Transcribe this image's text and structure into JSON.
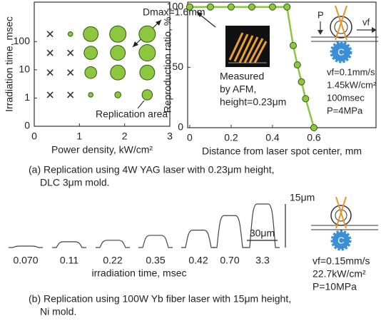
{
  "chart_data": [
    {
      "type": "scatter",
      "xlabel": "Power density, kW/cm²",
      "ylabel": "Irradiation time, msec",
      "xlim": [
        0,
        3
      ],
      "ylim": [
        0,
        2500
      ],
      "xticks": [
        0,
        1,
        2,
        3
      ],
      "yticks": [
        0,
        1,
        10,
        100
      ],
      "y_scale": "log",
      "series": [
        {
          "marker": "x",
          "color": "#333333",
          "x": [
            0.35,
            0.35,
            0.8,
            0.35,
            0.8,
            0.35,
            0.8
          ],
          "values": [
            185,
            40,
            40,
            8,
            8,
            1.3,
            1.3
          ]
        },
        {
          "marker": "circle",
          "color": "#8dc63f",
          "edgecolor": "#2d5a10",
          "x": [
            0.8,
            1.25,
            1.85,
            2.5,
            1.25,
            1.85,
            2.5,
            1.25,
            1.85,
            2.5,
            1.25,
            1.85,
            2.5
          ],
          "values": [
            185,
            185,
            185,
            185,
            40,
            40,
            40,
            8,
            8,
            8,
            1.3,
            1.3,
            1.3
          ],
          "sizes": [
            0.45,
            1.45,
            1.6,
            1.6,
            1.3,
            1.45,
            1.6,
            1.15,
            1.45,
            1.45,
            0.45,
            0.6,
            1.0
          ]
        }
      ],
      "annotations": [
        "Dmax=1.6mm",
        "Replication area"
      ]
    },
    {
      "type": "line",
      "xlabel": "Distance from laser spot center, mm",
      "ylabel": "Reproduction ratio, %",
      "xlim": [
        -0.01,
        0.9
      ],
      "ylim": [
        0,
        104
      ],
      "xticks": [
        0,
        0.2,
        0.4,
        0.6
      ],
      "yticks": [
        0,
        50,
        100
      ],
      "x": [
        0,
        0.1,
        0.2,
        0.3,
        0.4,
        0.47,
        0.5,
        0.52,
        0.54,
        0.56,
        0.6
      ],
      "values": [
        100,
        100,
        100,
        100,
        100,
        100,
        68,
        52,
        38,
        24,
        0
      ],
      "color": "#8dc63f",
      "edgecolor": "#2d5a10",
      "annotations": [
        "Measured",
        "by AFM,",
        "height=0.23μm"
      ],
      "diagram_labels": [
        "P",
        "vf",
        "C"
      ],
      "conditions": [
        "vf=0.1mm/s",
        "1.45kW/cm²",
        "100msec",
        "P=4MPa"
      ]
    },
    {
      "type": "profile",
      "xlabel": "irradiation time, msec",
      "categories": [
        "0.070",
        "0.11",
        "0.22",
        "0.35",
        "0.42",
        "0.70",
        "3.3"
      ],
      "values": [
        0.5,
        2,
        2.5,
        4.2,
        6,
        11,
        15
      ],
      "color": "#444444",
      "height_bar": {
        "value": 15,
        "label": "15μm"
      },
      "width_bar": {
        "value": 30,
        "label": "30μm"
      },
      "diagram_labels": [
        "C"
      ],
      "conditions": [
        "vf=0.15mm/s",
        "22.7kW/cm²",
        "P=10MPa"
      ]
    }
  ],
  "captions": [
    [
      "(a) Replication using 4W YAG laser with 0.23μm height,",
      "DLC 3μm mold."
    ],
    [
      "(b) Replication using 100W Yb fiber laser with 15μm height,",
      "Ni mold."
    ]
  ]
}
